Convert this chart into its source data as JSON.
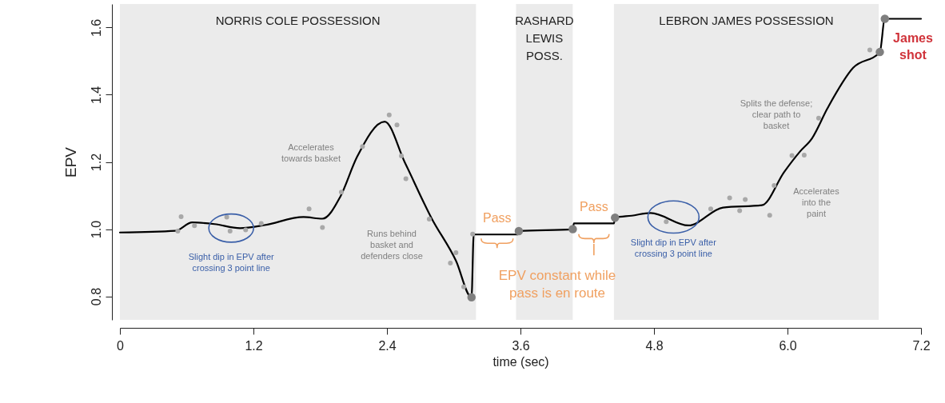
{
  "chart_data": {
    "type": "line",
    "xlabel": "time (sec)",
    "ylabel": "EPV",
    "xlim": [
      0,
      7.2
    ],
    "ylim": [
      0.73,
      1.67
    ],
    "xticks": [
      0,
      1.2,
      2.4,
      3.6,
      4.8,
      {
        "value": 6.0,
        "label": "6.0"
      },
      7.2
    ],
    "yticks": [
      0.8,
      {
        "value": 1.0,
        "label": "1.0"
      },
      1.2,
      1.4,
      1.6
    ],
    "series": [
      {
        "color": "#000000",
        "marker": "none",
        "line_style": "solid",
        "x": [
          0,
          0.5,
          0.65,
          0.85,
          1.08,
          1.3,
          1.65,
          1.82,
          1.98,
          2.13,
          2.38,
          2.56,
          2.8,
          3.02,
          3.16,
          3.18,
          3.575,
          3.585,
          4.07,
          4.08,
          4.44,
          4.45,
          4.6,
          4.77,
          5.11,
          5.42,
          5.77,
          5.97,
          6.11,
          6.22,
          6.36,
          6.59,
          6.83,
          6.875,
          7.2
        ],
        "values": [
          0.99,
          0.995,
          1.02,
          1.015,
          1.003,
          1.012,
          1.036,
          1.031,
          1.096,
          1.214,
          1.32,
          1.199,
          1.033,
          0.906,
          0.797,
          0.984,
          0.984,
          0.994,
          1.0,
          1.017,
          1.017,
          1.034,
          1.04,
          1.048,
          1.011,
          1.064,
          1.071,
          1.17,
          1.23,
          1.27,
          1.36,
          1.48,
          1.527,
          1.626,
          1.626
        ]
      },
      {
        "type": "scatter",
        "color": "#a8a8a8",
        "marker": "circle",
        "x": [
          0.55,
          0.52,
          0.67,
          0.96,
          0.99,
          1.13,
          1.27,
          1.7,
          1.82,
          1.99,
          2.18,
          2.42,
          2.49,
          2.53,
          2.57,
          2.78,
          2.97,
          3.02,
          3.09,
          3.17,
          4.91,
          5.31,
          5.48,
          5.57,
          5.62,
          5.84,
          5.88,
          6.04,
          6.15,
          6.28,
          6.74
        ],
        "values": [
          1.037,
          0.994,
          1.01,
          1.036,
          0.994,
          0.998,
          1.017,
          1.06,
          1.005,
          1.11,
          1.246,
          1.34,
          1.31,
          1.218,
          1.15,
          1.03,
          0.899,
          0.93,
          0.828,
          0.985,
          1.022,
          1.06,
          1.093,
          1.055,
          1.088,
          1.041,
          1.13,
          1.219,
          1.22,
          1.33,
          1.533
        ]
      },
      {
        "type": "scatter",
        "color": "#7f7f7f",
        "marker": "circle",
        "x": [
          3.16,
          3.585,
          4.07,
          4.45,
          6.83,
          6.875
        ],
        "values": [
          0.797,
          0.994,
          1.0,
          1.034,
          1.527,
          1.626
        ]
      }
    ],
    "bands": [
      {
        "axis": "x",
        "from": 0,
        "to": 3.2,
        "label": "NORRIS COLE POSSESSION",
        "color": "#ebebeb"
      },
      {
        "axis": "x",
        "from": 3.56,
        "to": 4.07,
        "label": "RASHARD\nLEWIS\nPOSS.",
        "color": "#ebebeb"
      },
      {
        "axis": "x",
        "from": 4.44,
        "to": 6.82,
        "label": "LEBRON JAMES POSSESSION",
        "color": "#ebebeb"
      }
    ],
    "annotations": [
      "Accelerates\ntowards basket",
      "Runs behind\nbasket and\ndefenders close",
      {
        "text": "Slight dip in EPV after\ncrossing 3 point line",
        "x": 1.0,
        "y": 1.003
      },
      {
        "text": "Pass",
        "x": 3.39,
        "y": 0.984
      },
      {
        "text": "Pass",
        "x": 4.26,
        "y": 1.017
      },
      "EPV constant while\npass is en route",
      {
        "text": "Slight dip in EPV after\ncrossing 3 point line",
        "x": 4.975,
        "y": 1.036
      },
      "Splits the defense;\nclear path to\nbasket",
      "Accelerates\ninto the\npaint",
      "James\nshot"
    ]
  }
}
